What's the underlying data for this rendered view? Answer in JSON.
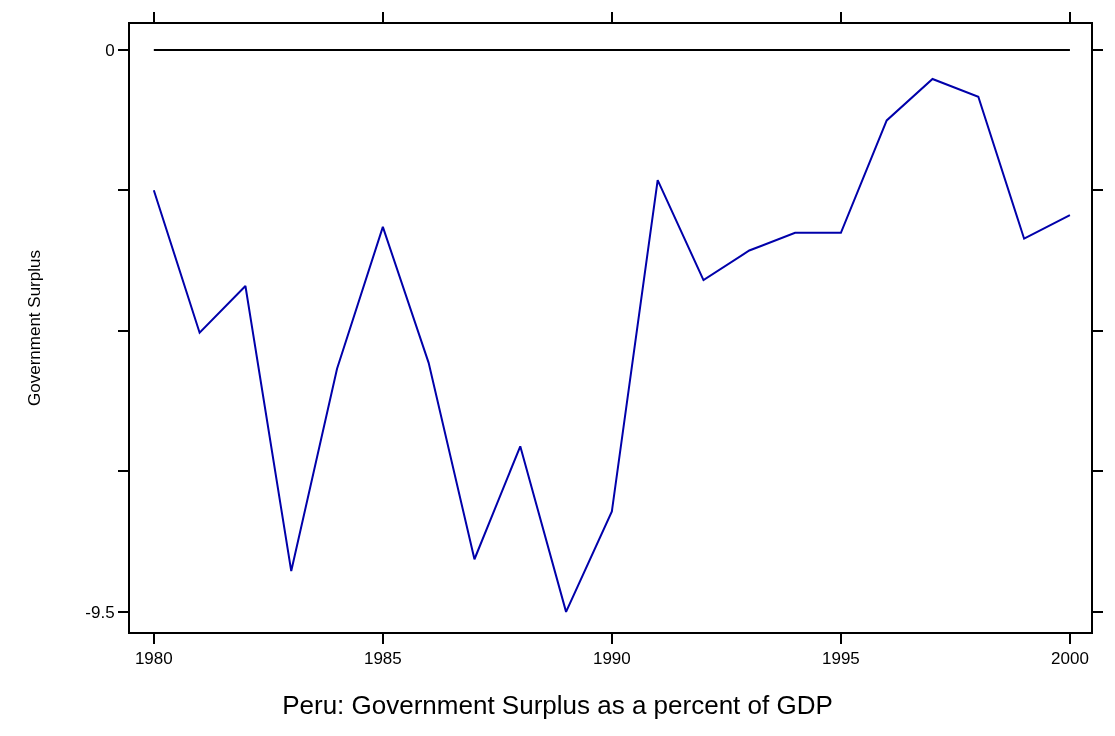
{
  "chart_data": {
    "type": "line",
    "title": "Peru: Government Surplus as a percent of GDP",
    "ylabel": "Government Surplus",
    "x": [
      1980,
      1981,
      1982,
      1983,
      1984,
      1985,
      1986,
      1987,
      1988,
      1989,
      1990,
      1991,
      1992,
      1993,
      1994,
      1995,
      1996,
      1997,
      1998,
      1999,
      2000
    ],
    "series": [
      {
        "color": "#0000aa",
        "values": [
          -2.37,
          -4.78,
          -3.99,
          -8.81,
          -5.39,
          -2.99,
          -5.29,
          -8.61,
          -6.7,
          -9.5,
          -7.8,
          -2.2,
          -3.89,
          -3.39,
          -3.09,
          -3.09,
          -1.19,
          -0.49,
          -0.79,
          -3.19,
          -2.79
        ]
      }
    ],
    "xlim": [
      1979.48,
      2000.46
    ],
    "ylim": [
      -9.84,
      0.44
    ],
    "xticks": [
      1980,
      1985,
      1990,
      1995,
      2000
    ],
    "yticks": [
      0,
      {
        "value": -2.375,
        "label": null
      },
      {
        "value": -4.75,
        "label": null
      },
      {
        "value": -7.125,
        "label": null
      },
      -9.5
    ],
    "ref_lines": [
      {
        "axis": "y",
        "value": 0,
        "color": "#000000",
        "line_style": "solid"
      }
    ],
    "marker": "none",
    "line_style": "solid"
  }
}
